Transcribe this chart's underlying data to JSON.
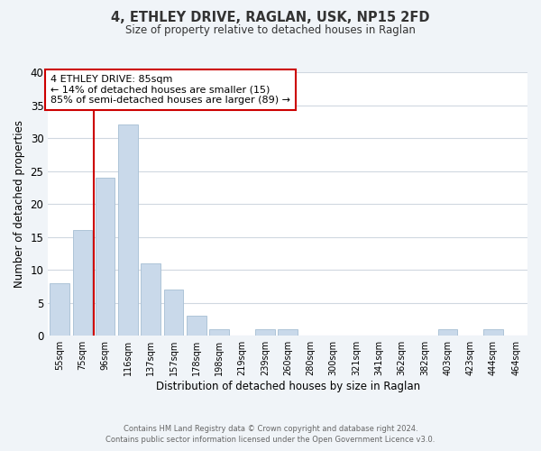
{
  "title": "4, ETHLEY DRIVE, RAGLAN, USK, NP15 2FD",
  "subtitle": "Size of property relative to detached houses in Raglan",
  "xlabel": "Distribution of detached houses by size in Raglan",
  "ylabel": "Number of detached properties",
  "bar_labels": [
    "55sqm",
    "75sqm",
    "96sqm",
    "116sqm",
    "137sqm",
    "157sqm",
    "178sqm",
    "198sqm",
    "219sqm",
    "239sqm",
    "260sqm",
    "280sqm",
    "300sqm",
    "321sqm",
    "341sqm",
    "362sqm",
    "382sqm",
    "403sqm",
    "423sqm",
    "444sqm",
    "464sqm"
  ],
  "bar_values": [
    8,
    16,
    24,
    32,
    11,
    7,
    3,
    1,
    0,
    1,
    1,
    0,
    0,
    0,
    0,
    0,
    0,
    1,
    0,
    1,
    0
  ],
  "bar_color": "#c9d9ea",
  "bar_edge_color": "#aec4d8",
  "property_line_color": "#cc0000",
  "annotation_title": "4 ETHLEY DRIVE: 85sqm",
  "annotation_line1": "← 14% of detached houses are smaller (15)",
  "annotation_line2": "85% of semi-detached houses are larger (89) →",
  "annotation_box_color": "#ffffff",
  "annotation_box_edge": "#cc0000",
  "ylim": [
    0,
    40
  ],
  "yticks": [
    0,
    5,
    10,
    15,
    20,
    25,
    30,
    35,
    40
  ],
  "footer_line1": "Contains HM Land Registry data © Crown copyright and database right 2024.",
  "footer_line2": "Contains public sector information licensed under the Open Government Licence v3.0.",
  "background_color": "#f0f4f8",
  "plot_bg_color": "#ffffff",
  "grid_color": "#d0d8e0"
}
